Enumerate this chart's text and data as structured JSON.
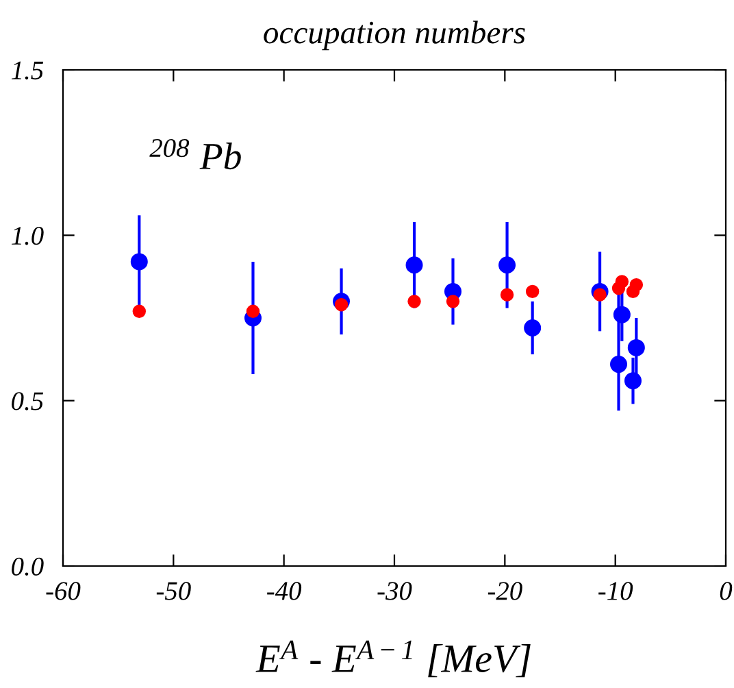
{
  "chart_data": {
    "type": "scatter",
    "title": "occupation numbers",
    "xlabel": "E$^{A}$ - E$^{A−1}$ [MeV]",
    "annotations": [
      {
        "text": "$^{208}$ Pb"
      }
    ],
    "x": [
      -53.1,
      -42.8,
      -34.8,
      -28.2,
      -24.7,
      -19.8,
      -17.5,
      -11.4,
      -9.7,
      -9.4,
      -8.4,
      -8.1
    ],
    "series": [
      {
        "color": "#0000ff",
        "values": [
          0.92,
          0.75,
          0.8,
          0.91,
          0.83,
          0.91,
          0.72,
          0.83,
          0.61,
          0.76,
          0.56,
          0.66
        ],
        "errors": [
          [
            0.78,
            1.06
          ],
          [
            0.58,
            0.92
          ],
          [
            0.7,
            0.9
          ],
          [
            0.78,
            1.04
          ],
          [
            0.73,
            0.93
          ],
          [
            0.78,
            1.04
          ],
          [
            0.64,
            0.8
          ],
          [
            0.71,
            0.95
          ],
          [
            0.47,
            0.85
          ],
          [
            0.68,
            0.85
          ],
          [
            0.49,
            0.63
          ],
          [
            0.57,
            0.75
          ]
        ]
      },
      {
        "color": "#ff0000",
        "values": [
          0.77,
          0.77,
          0.79,
          0.8,
          0.8,
          0.82,
          0.83,
          0.82,
          0.84,
          0.86,
          0.83,
          0.85
        ]
      }
    ],
    "xlim": [
      -60,
      0
    ],
    "xticks": [
      -60,
      -50,
      -40,
      -30,
      -20,
      -10,
      0
    ],
    "ylim": [
      0,
      1.5
    ],
    "yticks": [
      {
        "value": 0,
        "label": "0.0"
      },
      {
        "value": 0.5,
        "label": "0.5"
      },
      {
        "value": 1.0,
        "label": "1.0"
      },
      {
        "value": 1.5,
        "label": "1.5"
      }
    ],
    "grid": false,
    "legend": false,
    "marker": "circle"
  }
}
